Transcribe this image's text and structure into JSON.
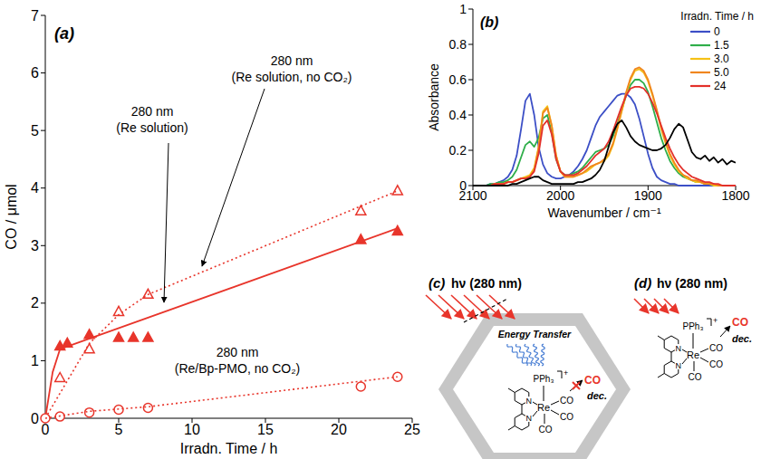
{
  "chart_data": [
    {
      "type": "scatter",
      "title": "(a)",
      "xlabel": "Irradn. Time / h",
      "ylabel": "CO / μmol",
      "xlim": [
        0,
        25
      ],
      "ylim": [
        0,
        7
      ],
      "xticks": [
        0,
        5,
        10,
        15,
        20,
        25
      ],
      "yticks": [
        0,
        1,
        2,
        3,
        4,
        5,
        6,
        7
      ],
      "series": [
        {
          "type": "scatter",
          "name": "280 nm (Re solution)",
          "marker": "triangle-filled",
          "color": "#e8352b",
          "x": [
            1,
            1.5,
            3,
            5,
            6,
            7,
            21.5,
            24
          ],
          "values": [
            1.25,
            1.3,
            1.45,
            1.4,
            1.4,
            1.4,
            3.1,
            3.25
          ]
        },
        {
          "type": "line",
          "line_style": "solid",
          "color": "#e8352b",
          "x": [
            0,
            0.5,
            1,
            24
          ],
          "values": [
            0,
            0.8,
            1.2,
            3.3
          ]
        },
        {
          "type": "scatter",
          "name": "280 nm (Re solution, no CO₂)",
          "marker": "triangle-open",
          "color": "#e8352b",
          "x": [
            1,
            3,
            5,
            7,
            21.5,
            24
          ],
          "values": [
            0.7,
            1.2,
            1.85,
            2.15,
            3.6,
            3.95
          ]
        },
        {
          "type": "line",
          "line_style": "dotted",
          "color": "#e8352b",
          "x": [
            0,
            3,
            5,
            7,
            24
          ],
          "values": [
            0,
            1.3,
            1.8,
            2.15,
            3.95
          ]
        },
        {
          "type": "scatter",
          "name": "280 nm (Re/Bp-PMO, no CO₂)",
          "marker": "circle-open",
          "color": "#e8352b",
          "x": [
            0,
            1,
            3,
            5,
            7,
            21.5,
            24
          ],
          "values": [
            0,
            0.03,
            0.1,
            0.15,
            0.18,
            0.55,
            0.72
          ]
        },
        {
          "type": "line",
          "line_style": "dotted",
          "color": "#e8352b",
          "x": [
            0,
            3,
            7,
            24
          ],
          "values": [
            0,
            0.12,
            0.2,
            0.72
          ]
        }
      ]
    },
    {
      "type": "line",
      "title": "(b)",
      "xlabel": "Wavenumber / cm⁻¹",
      "ylabel": "Absorbance",
      "legend_title": "Irradn. Time / h",
      "legend": "top-right",
      "xlim": [
        2100,
        1800
      ],
      "ylim": [
        0,
        1
      ],
      "xticks": [
        2100,
        2000,
        1900,
        1800
      ],
      "yticks": [
        0,
        0.2,
        0.4,
        0.6,
        0.8,
        1
      ],
      "x": [
        2100,
        2095,
        2090,
        2085,
        2080,
        2075,
        2070,
        2065,
        2060,
        2055,
        2050,
        2045,
        2040,
        2035,
        2030,
        2025,
        2020,
        2015,
        2010,
        2005,
        2000,
        1995,
        1990,
        1985,
        1980,
        1975,
        1970,
        1965,
        1960,
        1955,
        1950,
        1945,
        1940,
        1935,
        1930,
        1925,
        1920,
        1915,
        1910,
        1905,
        1900,
        1895,
        1890,
        1885,
        1880,
        1875,
        1870,
        1865,
        1860,
        1855,
        1850,
        1845,
        1840,
        1835,
        1830,
        1825,
        1820,
        1815,
        1810,
        1805,
        1800
      ],
      "series": [
        {
          "name": "0",
          "color": "#3c4fc6",
          "values": [
            0,
            0,
            0,
            0,
            0.01,
            0.01,
            0.02,
            0.03,
            0.05,
            0.09,
            0.17,
            0.32,
            0.48,
            0.52,
            0.4,
            0.22,
            0.12,
            0.07,
            0.05,
            0.04,
            0.04,
            0.05,
            0.06,
            0.08,
            0.11,
            0.15,
            0.2,
            0.27,
            0.34,
            0.39,
            0.42,
            0.45,
            0.48,
            0.51,
            0.52,
            0.52,
            0.5,
            0.46,
            0.38,
            0.28,
            0.18,
            0.1,
            0.05,
            0.03,
            0.02,
            0.01,
            0.01,
            0,
            0,
            0,
            0,
            0,
            0,
            0,
            0,
            0,
            0,
            0,
            0,
            0,
            0
          ]
        },
        {
          "name": "1.5",
          "color": "#2fae4a",
          "values": [
            0,
            0,
            0,
            0,
            0.01,
            0.01,
            0.02,
            0.02,
            0.03,
            0.05,
            0.09,
            0.16,
            0.23,
            0.25,
            0.22,
            0.27,
            0.38,
            0.4,
            0.3,
            0.15,
            0.08,
            0.06,
            0.06,
            0.07,
            0.08,
            0.1,
            0.13,
            0.16,
            0.19,
            0.2,
            0.21,
            0.23,
            0.28,
            0.35,
            0.43,
            0.51,
            0.57,
            0.6,
            0.6,
            0.58,
            0.53,
            0.45,
            0.36,
            0.27,
            0.2,
            0.14,
            0.1,
            0.07,
            0.05,
            0.04,
            0.03,
            0.02,
            0.02,
            0.01,
            0.01,
            0,
            0,
            0,
            0,
            0,
            0
          ]
        },
        {
          "name": "3.0",
          "color": "#f5c116",
          "values": [
            0,
            0,
            0,
            0,
            0,
            0.01,
            0.01,
            0.01,
            0.02,
            0.02,
            0.03,
            0.04,
            0.05,
            0.06,
            0.1,
            0.22,
            0.42,
            0.45,
            0.34,
            0.17,
            0.08,
            0.05,
            0.05,
            0.05,
            0.06,
            0.07,
            0.08,
            0.1,
            0.12,
            0.13,
            0.14,
            0.17,
            0.23,
            0.32,
            0.42,
            0.52,
            0.6,
            0.65,
            0.66,
            0.64,
            0.59,
            0.51,
            0.42,
            0.32,
            0.24,
            0.17,
            0.12,
            0.08,
            0.06,
            0.04,
            0.03,
            0.02,
            0.02,
            0.01,
            0.01,
            0,
            0,
            0,
            0,
            0,
            0
          ]
        },
        {
          "name": "5.0",
          "color": "#f0861e",
          "values": [
            0,
            0,
            0,
            0,
            0,
            0.01,
            0.01,
            0.01,
            0.02,
            0.02,
            0.03,
            0.04,
            0.04,
            0.05,
            0.09,
            0.21,
            0.41,
            0.44,
            0.34,
            0.17,
            0.08,
            0.05,
            0.05,
            0.05,
            0.06,
            0.07,
            0.09,
            0.11,
            0.12,
            0.13,
            0.15,
            0.18,
            0.24,
            0.33,
            0.43,
            0.53,
            0.61,
            0.66,
            0.67,
            0.65,
            0.6,
            0.52,
            0.43,
            0.33,
            0.25,
            0.18,
            0.13,
            0.09,
            0.06,
            0.05,
            0.03,
            0.03,
            0.02,
            0.01,
            0.01,
            0.01,
            0,
            0,
            0,
            0,
            0
          ]
        },
        {
          "name": "24",
          "color": "#e3302a",
          "values": [
            0,
            0,
            0,
            0,
            0,
            0.01,
            0.01,
            0.01,
            0.02,
            0.02,
            0.03,
            0.04,
            0.04,
            0.05,
            0.08,
            0.18,
            0.34,
            0.37,
            0.29,
            0.15,
            0.08,
            0.06,
            0.06,
            0.06,
            0.07,
            0.09,
            0.11,
            0.14,
            0.17,
            0.19,
            0.21,
            0.25,
            0.31,
            0.38,
            0.45,
            0.51,
            0.55,
            0.56,
            0.56,
            0.55,
            0.52,
            0.47,
            0.41,
            0.34,
            0.27,
            0.21,
            0.16,
            0.12,
            0.09,
            0.07,
            0.05,
            0.04,
            0.03,
            0.02,
            0.02,
            0.01,
            0.01,
            0,
            0,
            0,
            0
          ]
        },
        {
          "color": "#000000",
          "values": [
            0,
            0,
            0,
            0,
            0,
            0,
            0,
            0,
            0,
            0.01,
            0.01,
            0.02,
            0.03,
            0.04,
            0.05,
            0.05,
            0.03,
            0.02,
            0.01,
            0.01,
            0.01,
            0.01,
            0.01,
            0.01,
            0.02,
            0.02,
            0.03,
            0.04,
            0.06,
            0.09,
            0.14,
            0.22,
            0.3,
            0.35,
            0.37,
            0.33,
            0.28,
            0.25,
            0.23,
            0.22,
            0.21,
            0.2,
            0.2,
            0.21,
            0.23,
            0.27,
            0.32,
            0.35,
            0.33,
            0.26,
            0.19,
            0.16,
            0.15,
            0.17,
            0.14,
            0.16,
            0.13,
            0.15,
            0.12,
            0.14,
            0.13
          ]
        }
      ]
    }
  ],
  "diagrams": [
    {
      "label": "(c)",
      "light": "hν (280 nm)",
      "energy_transfer": "Energy Transfer",
      "product": "CO",
      "result": "dec.",
      "complex": {
        "ligand": "PPh₃",
        "charge": "+",
        "metal": "Re",
        "donor": "N",
        "carbonyl": "CO"
      }
    },
    {
      "label": "(d)",
      "light": "hν (280 nm)",
      "product": "CO",
      "result": "dec.",
      "complex": {
        "ligand": "PPh₃",
        "charge": "+",
        "metal": "Re",
        "donor": "N",
        "carbonyl": "CO"
      }
    }
  ]
}
